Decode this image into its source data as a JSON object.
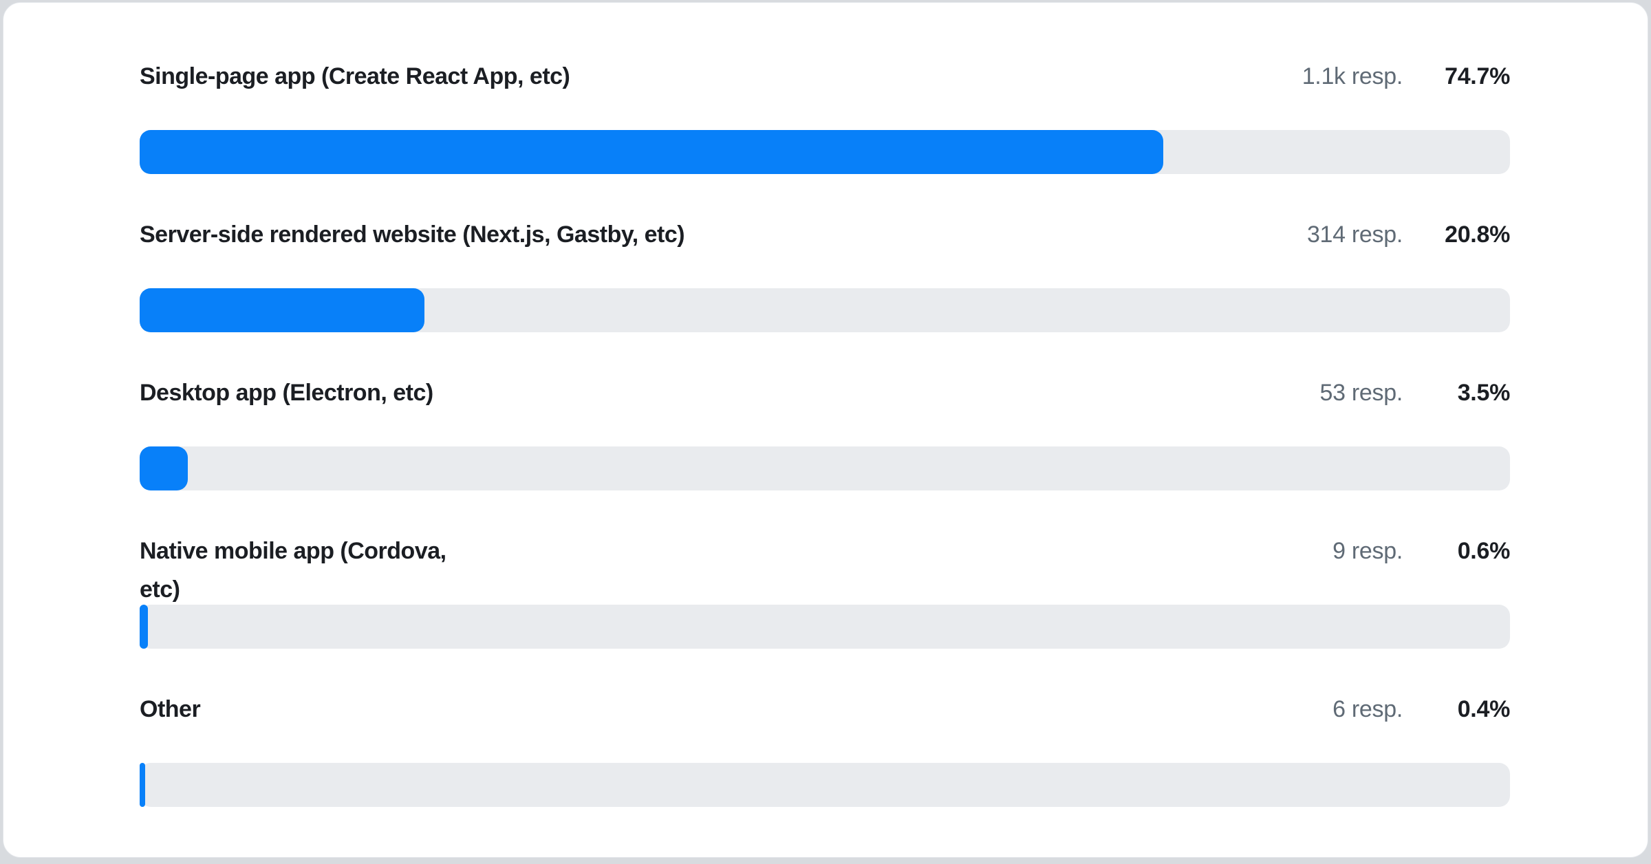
{
  "page": {
    "background_color": "#d8dbdf"
  },
  "card": {
    "background_color": "#ffffff",
    "border_color": "#e2e5e9"
  },
  "colors": {
    "bar_fill": "#0880f9",
    "bar_track": "#e9ebee",
    "label_text": "#1b1e23",
    "count_text": "#5f6a75",
    "percent_text": "#1b1e23"
  },
  "chart_data": {
    "type": "bar",
    "orientation": "horizontal",
    "title": "",
    "categories": [
      "Single-page app (Create React App, etc)",
      "Server-side rendered website (Next.js, Gastby, etc)",
      "Desktop app (Electron, etc)",
      "Native mobile app (Cordova, etc)",
      "Other"
    ],
    "values_percent": [
      74.7,
      20.8,
      3.5,
      0.6,
      0.4
    ],
    "response_counts_label": [
      "1.1k resp.",
      "314 resp.",
      "53 resp.",
      "9 resp.",
      "6 resp."
    ],
    "xlim": [
      0,
      100
    ],
    "grid": false,
    "legend": false
  },
  "rows": [
    {
      "label_lines": [
        "Single-page app (Create React App, etc)"
      ],
      "responses": "1.1k resp.",
      "percent": "74.7%",
      "value": 74.7
    },
    {
      "label_lines": [
        "Server-side rendered website (Next.js, Gastby, etc)"
      ],
      "responses": "314 resp.",
      "percent": "20.8%",
      "value": 20.8
    },
    {
      "label_lines": [
        "Desktop app (Electron, etc)"
      ],
      "responses": "53 resp.",
      "percent": "3.5%",
      "value": 3.5
    },
    {
      "label_lines": [
        "Native mobile app (Cordova,",
        "etc)"
      ],
      "responses": "9 resp.",
      "percent": "0.6%",
      "value": 0.6
    },
    {
      "label_lines": [
        "Other"
      ],
      "responses": "6 resp.",
      "percent": "0.4%",
      "value": 0.4
    }
  ]
}
